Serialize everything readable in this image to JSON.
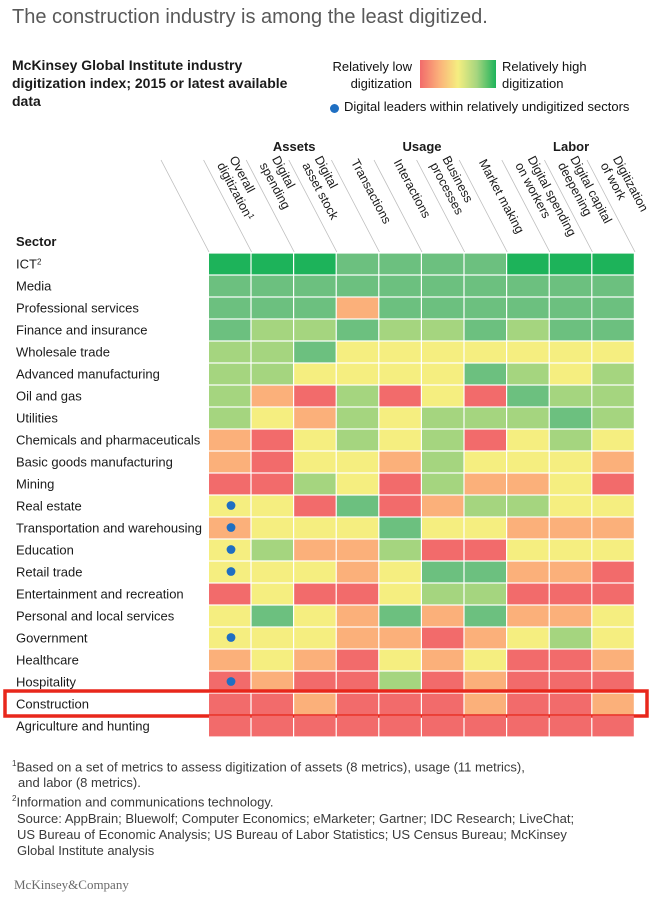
{
  "headline": "The construction industry is among the least digitized.",
  "subtitle": "McKinsey Global Institute industry digitization index; 2015 or latest available data",
  "legend": {
    "low_label": "Relatively low digitization",
    "high_label": "Relatively high digitization",
    "dot_label": "Digital leaders within relatively undigitized sectors",
    "colors": [
      "#f26b6b",
      "#fbb07a",
      "#f5ee80",
      "#a5d57f",
      "#6cc07f",
      "#1db35a"
    ]
  },
  "chart_data": {
    "type": "heatmap",
    "title": "McKinsey Global Institute industry digitization index; 2015 or latest available data",
    "scale": "1 = relatively low digitization … 6 = relatively high digitization",
    "row_header": "Sector",
    "groups": [
      {
        "name": "Assets",
        "columns": [
          1,
          2
        ]
      },
      {
        "name": "Usage",
        "columns": [
          3,
          4,
          5,
          6
        ]
      },
      {
        "name": "Labor",
        "columns": [
          7,
          8,
          9
        ]
      }
    ],
    "columns": [
      {
        "lines": [
          "Overall",
          "digitization"
        ],
        "sup": "1"
      },
      {
        "lines": [
          "Digital",
          "spending"
        ]
      },
      {
        "lines": [
          "Digital",
          "asset stock"
        ]
      },
      {
        "lines": [
          "Transactions"
        ]
      },
      {
        "lines": [
          "Interactions"
        ]
      },
      {
        "lines": [
          "Business",
          "processes"
        ]
      },
      {
        "lines": [
          "Market making"
        ]
      },
      {
        "lines": [
          "Digital spending",
          "on workers"
        ]
      },
      {
        "lines": [
          "Digital capital",
          "deepening"
        ]
      },
      {
        "lines": [
          "Digitization",
          "of work"
        ]
      }
    ],
    "rows": [
      {
        "label": "ICT",
        "sup": "2",
        "values": [
          6,
          6,
          6,
          5,
          5,
          5,
          5,
          6,
          6,
          6
        ],
        "leader": false
      },
      {
        "label": "Media",
        "values": [
          5,
          5,
          5,
          5,
          5,
          5,
          5,
          5,
          5,
          5
        ],
        "leader": false
      },
      {
        "label": "Professional services",
        "values": [
          5,
          5,
          5,
          2,
          5,
          5,
          5,
          5,
          5,
          5
        ],
        "leader": false
      },
      {
        "label": "Finance and insurance",
        "values": [
          5,
          4,
          4,
          5,
          4,
          4,
          5,
          4,
          5,
          5
        ],
        "leader": false
      },
      {
        "label": "Wholesale trade",
        "values": [
          4,
          4,
          5,
          3,
          3,
          3,
          3,
          3,
          3,
          3
        ],
        "leader": false
      },
      {
        "label": "Advanced manufacturing",
        "values": [
          4,
          4,
          3,
          3,
          3,
          3,
          5,
          4,
          3,
          4
        ],
        "leader": false
      },
      {
        "label": "Oil and gas",
        "values": [
          4,
          2,
          1,
          4,
          1,
          3,
          1,
          5,
          4,
          4
        ],
        "leader": false
      },
      {
        "label": "Utilities",
        "values": [
          4,
          3,
          2,
          4,
          3,
          4,
          4,
          4,
          5,
          4
        ],
        "leader": false
      },
      {
        "label": "Chemicals and pharmaceuticals",
        "values": [
          2,
          1,
          3,
          4,
          3,
          4,
          1,
          3,
          4,
          3
        ],
        "leader": false
      },
      {
        "label": "Basic goods manufacturing",
        "values": [
          2,
          1,
          3,
          3,
          2,
          4,
          3,
          3,
          3,
          2
        ],
        "leader": false
      },
      {
        "label": "Mining",
        "values": [
          1,
          1,
          4,
          3,
          1,
          4,
          2,
          2,
          3,
          1
        ],
        "leader": false
      },
      {
        "label": "Real estate",
        "values": [
          3,
          3,
          1,
          5,
          1,
          2,
          4,
          4,
          3,
          3
        ],
        "leader": true
      },
      {
        "label": "Transportation and warehousing",
        "values": [
          2,
          3,
          3,
          3,
          5,
          3,
          3,
          2,
          2,
          2
        ],
        "leader": true
      },
      {
        "label": "Education",
        "values": [
          3,
          4,
          2,
          2,
          4,
          1,
          1,
          3,
          3,
          3
        ],
        "leader": true
      },
      {
        "label": "Retail trade",
        "values": [
          3,
          3,
          3,
          2,
          3,
          5,
          5,
          2,
          2,
          1
        ],
        "leader": true
      },
      {
        "label": "Entertainment and recreation",
        "values": [
          1,
          3,
          1,
          1,
          3,
          4,
          4,
          1,
          1,
          1
        ],
        "leader": false
      },
      {
        "label": "Personal and local services",
        "values": [
          3,
          5,
          3,
          2,
          5,
          2,
          5,
          2,
          2,
          3
        ],
        "leader": false
      },
      {
        "label": "Government",
        "values": [
          3,
          3,
          3,
          2,
          2,
          1,
          2,
          3,
          4,
          3
        ],
        "leader": true
      },
      {
        "label": "Healthcare",
        "values": [
          2,
          3,
          2,
          1,
          3,
          2,
          3,
          1,
          1,
          2
        ],
        "leader": false
      },
      {
        "label": "Hospitality",
        "values": [
          1,
          2,
          1,
          1,
          4,
          1,
          2,
          1,
          1,
          1
        ],
        "leader": true
      },
      {
        "label": "Construction",
        "values": [
          1,
          1,
          2,
          1,
          1,
          1,
          2,
          1,
          1,
          2
        ],
        "leader": false,
        "highlight": true
      },
      {
        "label": "Agriculture and hunting",
        "values": [
          1,
          1,
          1,
          1,
          1,
          1,
          1,
          1,
          1,
          1
        ],
        "leader": false
      }
    ]
  },
  "footnotes": {
    "fn1_mark": "1",
    "fn1_line1": "Based on a set of metrics to assess digitization of assets (8 metrics), usage (11 metrics),",
    "fn1_line2": "and labor (8 metrics).",
    "fn2_mark": "2",
    "fn2_text": "Information and communications technology.",
    "source": "Source: AppBrain; Bluewolf; Computer Economics; eMarketer; Gartner; IDC Research; LiveChat; US Bureau of Economic Analysis; US Bureau of Labor Statistics; US Census Bureau; McKinsey Global Institute analysis"
  },
  "brand": "McKinsey&Company",
  "highlight_color": "#e8271b",
  "dot_color": "#1f6fc2"
}
